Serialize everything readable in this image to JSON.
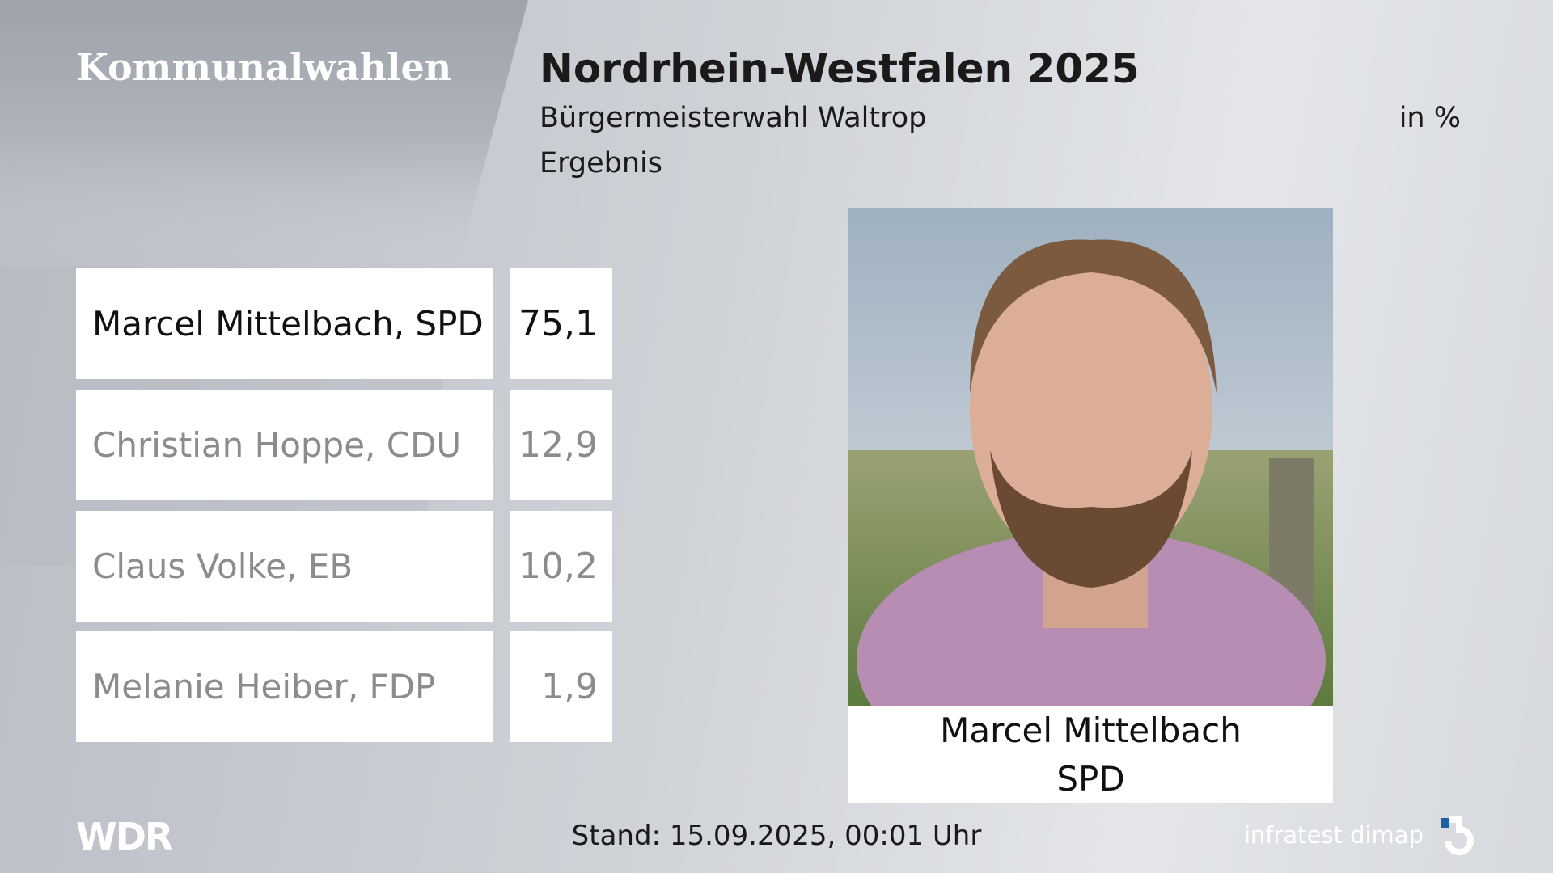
{
  "header": {
    "section": "Kommunalwahlen",
    "title": "Nordrhein-Westfalen 2025",
    "subtitle": "Bürgermeisterwahl Waltrop",
    "unit": "in %",
    "label": "Ergebnis"
  },
  "table": {
    "rows": [
      {
        "name": "Marcel Mittelbach, SPD",
        "value": "75,1"
      },
      {
        "name": "Christian Hoppe, CDU",
        "value": "12,9"
      },
      {
        "name": "Claus Volke, EB",
        "value": "10,2"
      },
      {
        "name": "Melanie Heiber, FDP",
        "value": "1,9"
      }
    ]
  },
  "photo": {
    "caption_name": "Marcel Mittelbach",
    "caption_party": "SPD"
  },
  "footer": {
    "logo": "WDR",
    "timestamp": "Stand: 15.09.2025, 00:01 Uhr",
    "source": "infratest dimap"
  }
}
